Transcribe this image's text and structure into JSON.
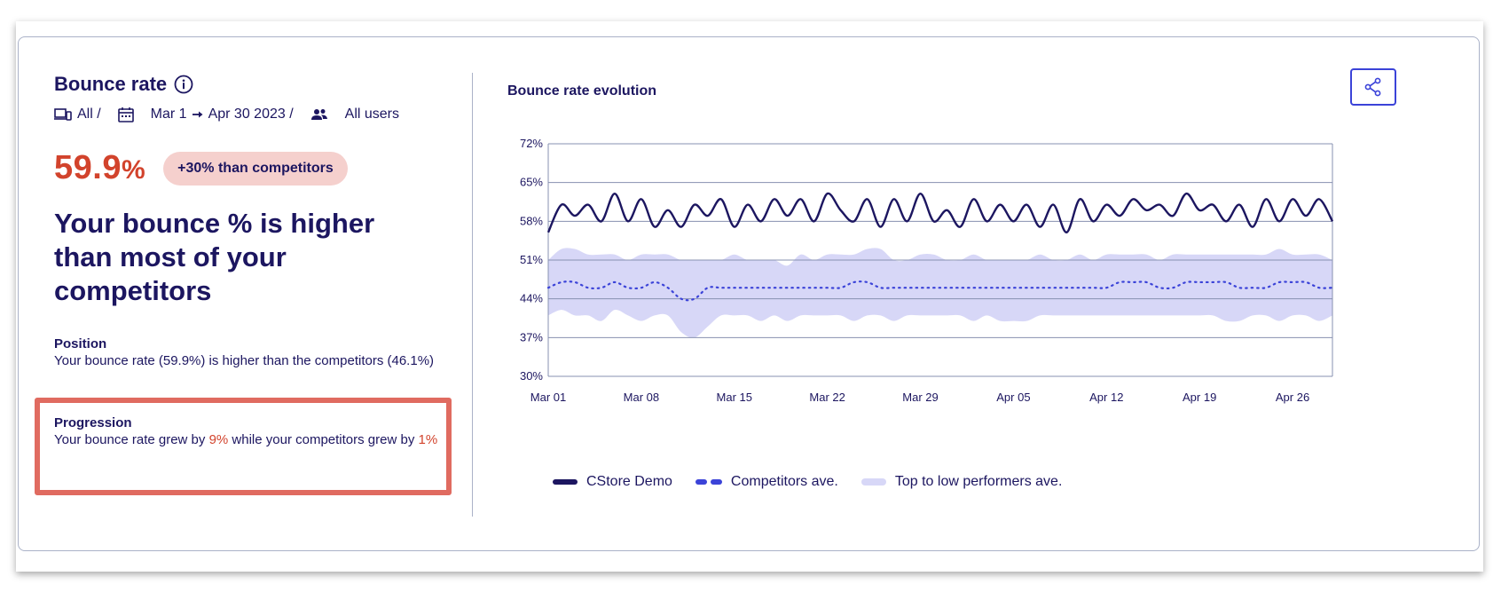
{
  "card": {
    "title": "Bounce rate",
    "filters": {
      "device": "All /",
      "date_start": "Mar 1",
      "date_end": "Apr 30 2023 /",
      "audience": "All users"
    },
    "kpi_value": "59.9",
    "kpi_unit": "%",
    "kpi_badge": "+30% than competitors",
    "headline": "Your bounce % is higher than most of your competitors",
    "position": {
      "title": "Position",
      "text": "Your bounce rate (59.9%) is higher than the competitors (46.1%)"
    },
    "progression": {
      "title": "Progression",
      "text_1": "Your bounce rate grew by ",
      "value_1": "9%",
      "text_2": " while your competitors grew by ",
      "value_2": "1%"
    },
    "chart_title": "Bounce rate evolution",
    "share_icon": "share-icon",
    "info_icon": "info-icon"
  },
  "colors": {
    "primary": "#1c1660",
    "accent": "#3b43d8",
    "band": "#d7d7f7",
    "alert": "#d2432c",
    "badge_bg": "#f5d0cd",
    "highlight_border": "#e06b60"
  },
  "chart_data": {
    "type": "line",
    "title": "Bounce rate evolution",
    "xlabel": "",
    "ylabel": "",
    "ylim": [
      30,
      72
    ],
    "y_ticks": [
      "72%",
      "65%",
      "58%",
      "51%",
      "44%",
      "37%",
      "30%"
    ],
    "y_tick_values": [
      72,
      65,
      58,
      51,
      44,
      37,
      30
    ],
    "x_ticks": [
      "Mar 01",
      "Mar 08",
      "Mar 15",
      "Mar 22",
      "Mar 29",
      "Apr 05",
      "Apr 12",
      "Apr 19",
      "Apr 26"
    ],
    "x_tick_days": [
      0,
      7,
      14,
      21,
      28,
      35,
      42,
      49,
      56
    ],
    "days": 60,
    "series": [
      {
        "name": "CStore Demo",
        "style": "solid",
        "values": [
          56,
          61,
          59,
          61,
          58,
          63,
          58,
          62,
          57,
          60,
          57,
          61,
          59,
          62,
          57,
          61,
          58,
          62,
          59,
          62,
          58,
          63,
          60,
          58,
          62,
          57,
          62,
          58,
          63,
          58,
          60,
          57,
          62,
          58,
          61,
          58,
          61,
          57,
          61,
          56,
          62,
          58,
          61,
          59,
          62,
          60,
          61,
          59,
          63,
          60,
          61,
          58,
          61,
          57,
          62,
          58,
          62,
          59,
          62,
          58
        ]
      },
      {
        "name": "Competitors ave.",
        "style": "dotted",
        "values": [
          46,
          47,
          47,
          46,
          46,
          47,
          46,
          46,
          47,
          46,
          44,
          44,
          46,
          46,
          46,
          46,
          46,
          46,
          46,
          46,
          46,
          46,
          46,
          47,
          47,
          46,
          46,
          46,
          46,
          46,
          46,
          46,
          46,
          46,
          46,
          46,
          46,
          46,
          46,
          46,
          46,
          46,
          46,
          47,
          47,
          47,
          46,
          46,
          47,
          47,
          47,
          47,
          46,
          46,
          46,
          47,
          47,
          47,
          46,
          46
        ]
      },
      {
        "name": "Top to low performers ave.",
        "style": "band",
        "upper": [
          51,
          53,
          53,
          52,
          52,
          52,
          51,
          52,
          52,
          52,
          51,
          51,
          51,
          51,
          52,
          51,
          51,
          51,
          50,
          52,
          51,
          52,
          52,
          52,
          53,
          53,
          51,
          51,
          52,
          52,
          51,
          51,
          52,
          51,
          51,
          51,
          51,
          52,
          51,
          51,
          52,
          51,
          52,
          52,
          52,
          52,
          51,
          52,
          52,
          52,
          52,
          52,
          52,
          52,
          52,
          53,
          52,
          52,
          52,
          51
        ],
        "lower": [
          41,
          42,
          41,
          41,
          40,
          42,
          41,
          40,
          41,
          41,
          38,
          37,
          39,
          41,
          41,
          41,
          40,
          41,
          40,
          41,
          41,
          41,
          41,
          40,
          41,
          41,
          40,
          41,
          41,
          41,
          41,
          41,
          40,
          41,
          40,
          40,
          40,
          41,
          41,
          41,
          41,
          41,
          41,
          41,
          41,
          41,
          41,
          41,
          41,
          41,
          41,
          40,
          40,
          41,
          41,
          40,
          41,
          41,
          40,
          41
        ]
      }
    ],
    "legend": [
      "CStore Demo",
      "Competitors ave.",
      "Top to low performers ave."
    ],
    "legend_position": "bottom-left",
    "grid": true
  }
}
